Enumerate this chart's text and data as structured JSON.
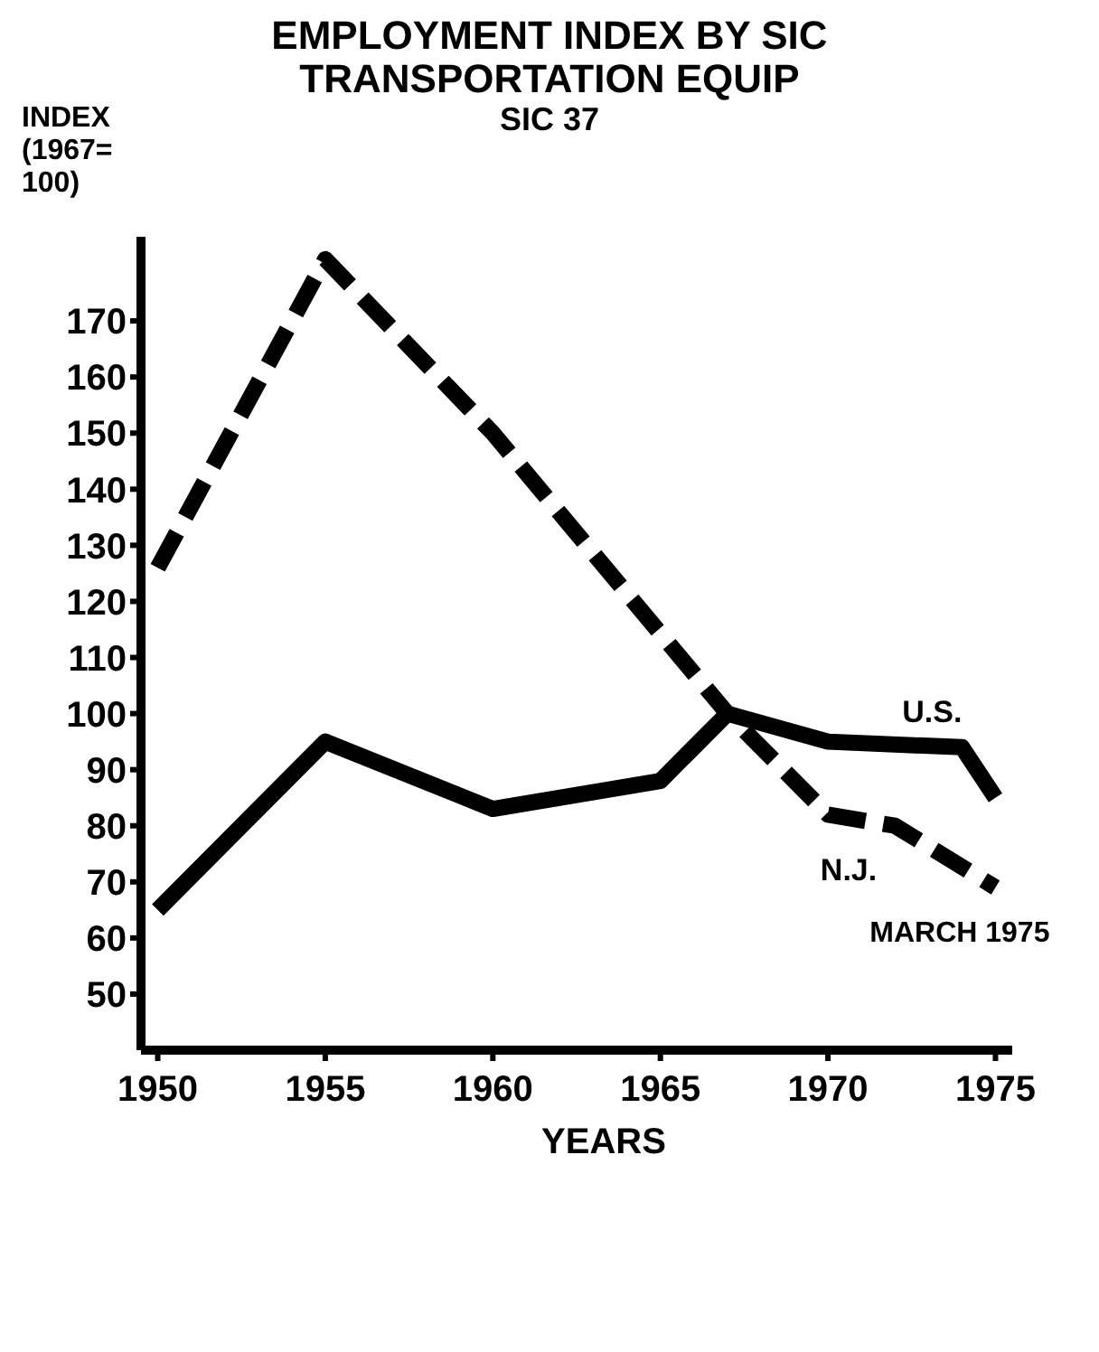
{
  "chart_data": {
    "type": "line",
    "title": "EMPLOYMENT INDEX BY SIC TRANSPORTATION EQUIP",
    "subtitle": "SIC 37",
    "xlabel": "YEARS",
    "ylabel": "INDEX (1967= 100)",
    "series": [
      {
        "name": "U.S.",
        "color": "#000000",
        "line_style": "solid",
        "x": [
          1950,
          1955,
          1960,
          1965,
          1967,
          1970,
          1974,
          1975
        ],
        "values": [
          65,
          95,
          83,
          88,
          100,
          95,
          94,
          85
        ]
      },
      {
        "name": "N.J.",
        "color": "#000000",
        "line_style": "dashed",
        "x": [
          1950,
          1955,
          1960,
          1967,
          1970,
          1972,
          1975
        ],
        "values": [
          126,
          181,
          150,
          100,
          82,
          80,
          69
        ]
      }
    ],
    "annotations": [
      {
        "text": "MARCH 1975",
        "x": 1975,
        "y": 69
      }
    ],
    "xlim": [
      1949.5,
      1975.5
    ],
    "xticks": [
      1950,
      1955,
      1960,
      1965,
      1970,
      1975
    ],
    "ylim": [
      40,
      185
    ],
    "yticks": [
      50,
      60,
      70,
      80,
      90,
      100,
      110,
      120,
      130,
      140,
      150,
      160,
      170
    ],
    "grid": false,
    "legend": false,
    "marker": "none"
  }
}
